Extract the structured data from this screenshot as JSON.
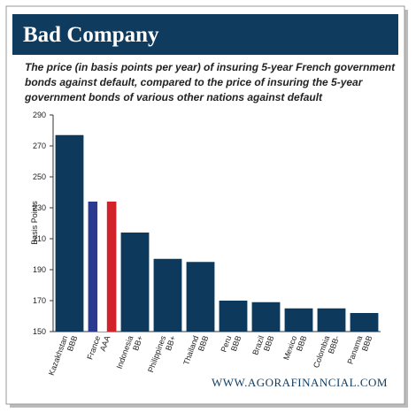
{
  "chart_data": {
    "type": "bar",
    "title": "Bad Company",
    "subtitle_lines": [
      "The price (in basis points per year) of insuring 5-year French government",
      "bonds against default, compared to the price of insuring the 5-year",
      "government bonds of various other nations against default"
    ],
    "y_label": "Basis Points",
    "categories": [
      "Kazakhstan",
      "France",
      "Indonesia",
      "Philippines",
      "Thailand",
      "Peru",
      "Brazil",
      "Mexico",
      "Colombia",
      "Panama"
    ],
    "ratings": [
      "BBB",
      "AAA",
      "BB+",
      "BB+",
      "BBB",
      "BBB",
      "BBB",
      "BBB",
      "BBB-",
      "BBB"
    ],
    "values": [
      277,
      234,
      214,
      197,
      195,
      170,
      169,
      165,
      165,
      162
    ],
    "color": "#0d3a5c",
    "flag_index": 1,
    "flag_colors": [
      "#2a3a8f",
      "#ffffff",
      "#d2232a"
    ],
    "ylim": [
      150,
      290
    ],
    "yticks": [
      150,
      170,
      190,
      210,
      230,
      250,
      270,
      290
    ],
    "source": "WWW.AGORAFINANCIAL.COM"
  }
}
